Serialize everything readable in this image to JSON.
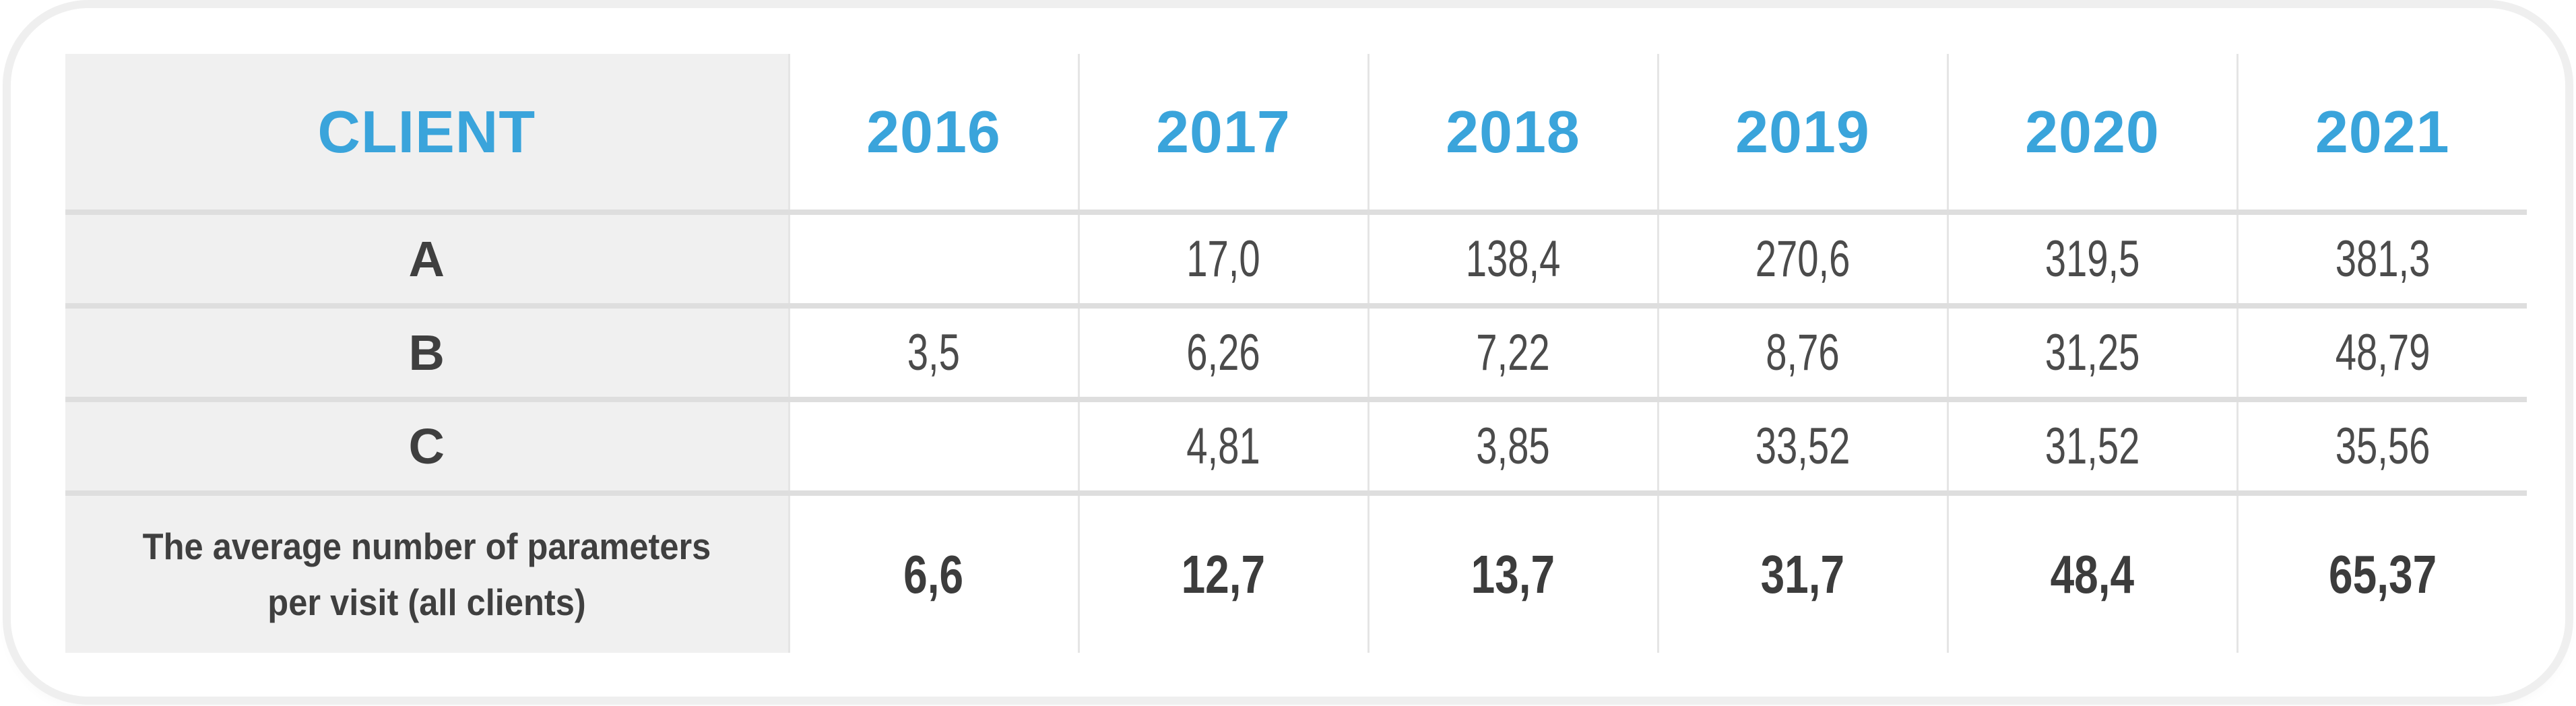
{
  "table": {
    "columns": [
      "CLIENT",
      "2016",
      "2017",
      "2018",
      "2019",
      "2020",
      "2021"
    ],
    "rows": [
      {
        "label": "A",
        "values": [
          "",
          "17,0",
          "138,4",
          "270,6",
          "319,5",
          "381,3"
        ]
      },
      {
        "label": "B",
        "values": [
          "3,5",
          "6,26",
          "7,22",
          "8,76",
          "31,25",
          "48,79"
        ]
      },
      {
        "label": "C",
        "values": [
          "",
          "4,81",
          "3,85",
          "33,52",
          "31,52",
          "35,56"
        ]
      }
    ],
    "footer": {
      "label_lines": [
        "The average number of parameters",
        "per visit (all clients)"
      ],
      "values": [
        "6,6",
        "12,7",
        "13,7",
        "31,7",
        "48,4",
        "65,37"
      ]
    }
  },
  "colors": {
    "accent_blue": "#3aa4db",
    "label_column_bg": "#f0f0f0",
    "horizontal_rule": "#dedede",
    "vertical_rule": "#e5e5e5",
    "text_dark": "#3f3f3f",
    "text_values": "#4b4b4b",
    "card_ring": "#efefef"
  },
  "chart_data": {
    "type": "table",
    "columns": [
      "CLIENT",
      "2016",
      "2017",
      "2018",
      "2019",
      "2020",
      "2021"
    ],
    "rows": [
      [
        "A",
        null,
        17.0,
        138.4,
        270.6,
        319.5,
        381.3
      ],
      [
        "B",
        3.5,
        6.26,
        7.22,
        8.76,
        31.25,
        48.79
      ],
      [
        "C",
        null,
        4.81,
        3.85,
        33.52,
        31.52,
        35.56
      ],
      [
        "The average number of parameters per visit (all clients)",
        6.6,
        12.7,
        13.7,
        31.7,
        48.4,
        65.37
      ]
    ],
    "number_format": "decimal-comma",
    "grid": true,
    "title": ""
  }
}
